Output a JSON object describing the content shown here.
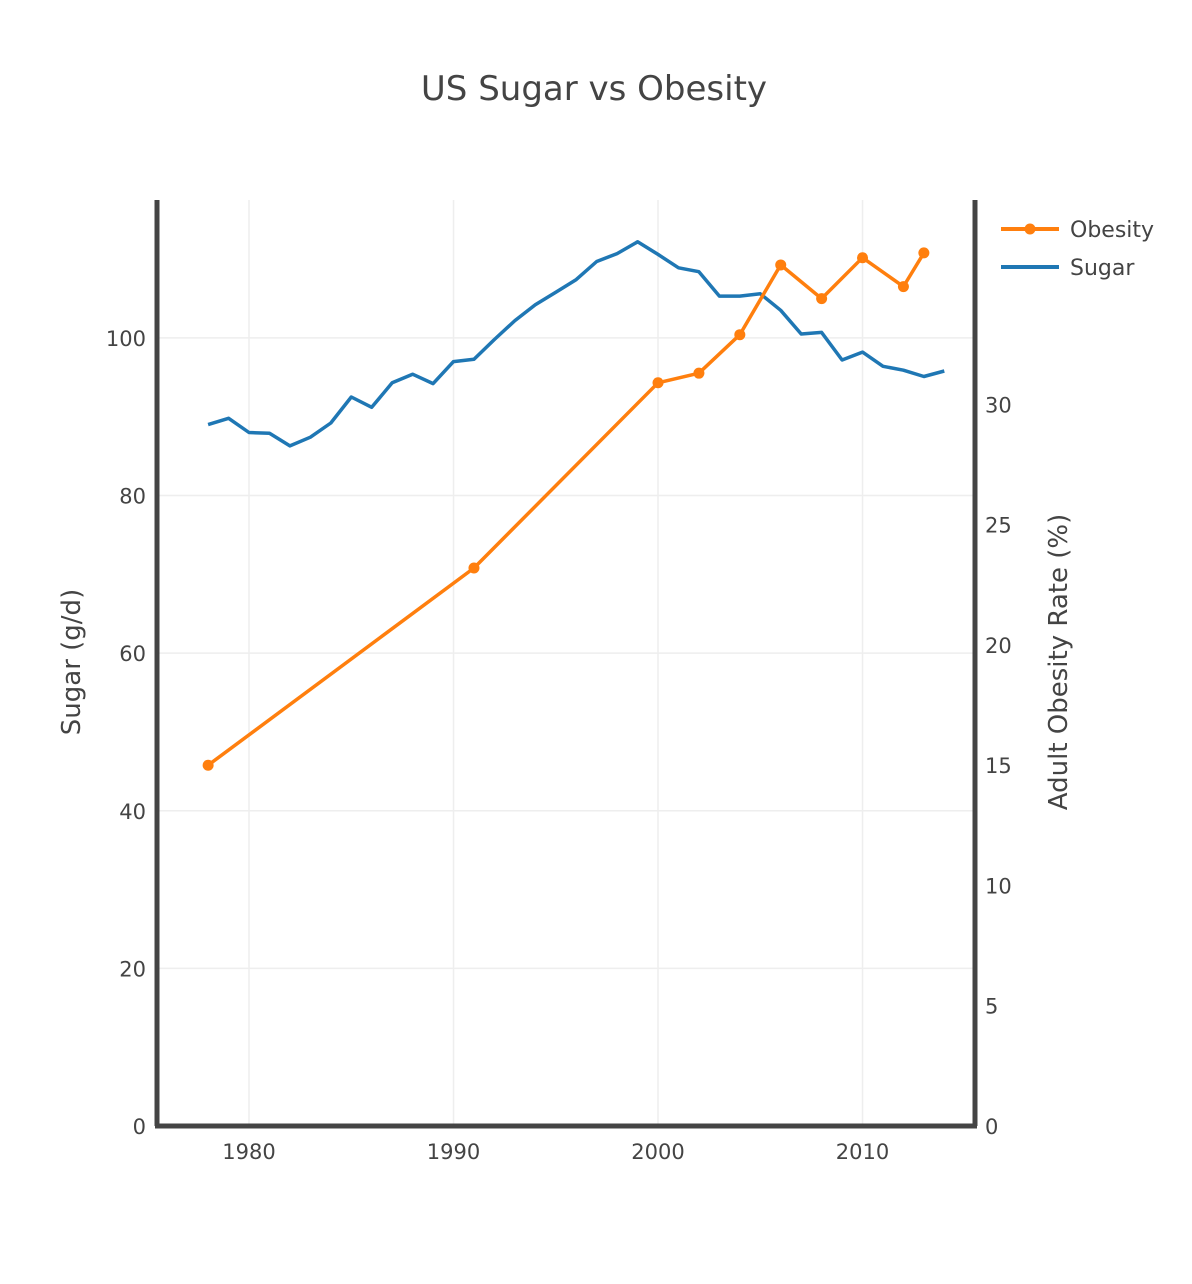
{
  "chart_data": {
    "type": "line",
    "title": "US Sugar vs Obesity",
    "xlabel": "",
    "ylabel": "Sugar (g/d)",
    "y2label": "Adult Obesity Rate (%)",
    "xlim": [
      1975.5,
      2015.5
    ],
    "ylim": [
      0,
      117.5
    ],
    "y2lim": [
      0,
      38.5
    ],
    "x_ticks": [
      1980,
      1990,
      2000,
      2010
    ],
    "x_tick_labels": [
      "1980",
      "1990",
      "2000",
      "2010"
    ],
    "y_ticks": [
      0,
      20,
      40,
      60,
      80,
      100
    ],
    "y_tick_labels": [
      "0",
      "20",
      "40",
      "60",
      "80",
      "100"
    ],
    "y2_ticks": [
      0,
      5,
      10,
      15,
      20,
      25,
      30
    ],
    "y2_tick_labels": [
      "0",
      "5",
      "10",
      "15",
      "20",
      "25",
      "30"
    ],
    "grid": true,
    "legend_position": "top-right",
    "colors": {
      "Obesity": "#ff7f0e",
      "Sugar": "#1f77b4",
      "axis": "#444444",
      "grid": "#eeeeee"
    },
    "series": [
      {
        "name": "Obesity",
        "axis": "y2",
        "markers": true,
        "x": [
          1978,
          1991,
          2000,
          2002,
          2004,
          2006,
          2008,
          2010,
          2012,
          2013
        ],
        "y": [
          15.0,
          23.2,
          30.9,
          31.3,
          32.9,
          35.8,
          34.4,
          36.1,
          34.9,
          36.3
        ]
      },
      {
        "name": "Sugar",
        "axis": "y",
        "markers": false,
        "x": [
          1978,
          1979,
          1980,
          1981,
          1982,
          1983,
          1984,
          1985,
          1986,
          1987,
          1988,
          1989,
          1990,
          1991,
          1992,
          1993,
          1994,
          1995,
          1996,
          1997,
          1998,
          1999,
          2000,
          2001,
          2002,
          2003,
          2004,
          2005,
          2006,
          2007,
          2008,
          2009,
          2010,
          2011,
          2012,
          2013,
          2014
        ],
        "y": [
          89.0,
          89.8,
          88.0,
          87.9,
          86.3,
          87.4,
          89.2,
          92.5,
          91.2,
          94.3,
          95.4,
          94.2,
          97.0,
          97.3,
          99.8,
          102.2,
          104.2,
          105.8,
          107.4,
          109.7,
          110.7,
          112.2,
          110.6,
          108.9,
          108.4,
          105.3,
          105.3,
          105.6,
          103.5,
          100.5,
          100.7,
          97.2,
          98.2,
          96.4,
          95.9,
          95.1,
          95.8
        ]
      }
    ]
  }
}
